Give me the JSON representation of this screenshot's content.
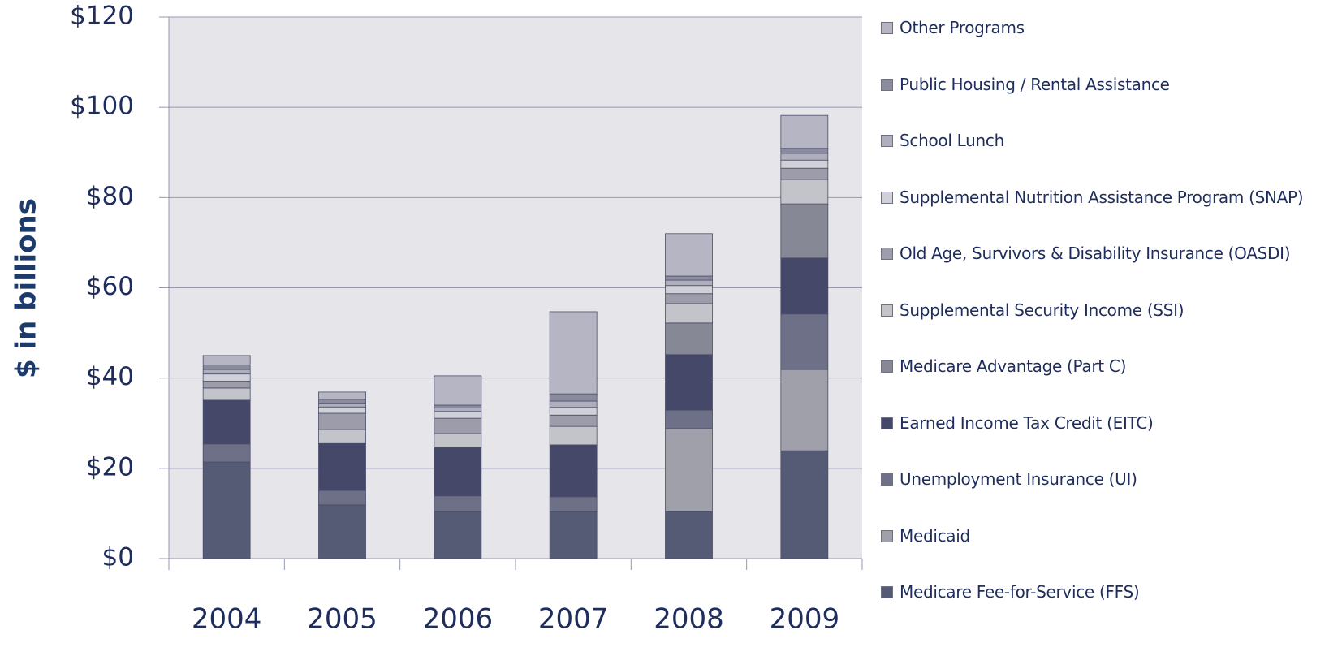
{
  "chart_data": {
    "type": "stacked_bar",
    "ylabel": "$ in billions",
    "categories": [
      "2004",
      "2005",
      "2006",
      "2007",
      "2008",
      "2009"
    ],
    "ylim": [
      0,
      120
    ],
    "yticks": [
      {
        "value": 0,
        "label": "$0"
      },
      {
        "value": 20,
        "label": "$20"
      },
      {
        "value": 40,
        "label": "$40"
      },
      {
        "value": 60,
        "label": "$60"
      },
      {
        "value": 80,
        "label": "$80"
      },
      {
        "value": 100,
        "label": "$100"
      },
      {
        "value": 120,
        "label": "$120"
      }
    ],
    "grid": true,
    "series": [
      {
        "name": "Medicare Fee-for-Service (FFS)",
        "color": "#555a75",
        "values": [
          21.4,
          11.9,
          10.4,
          10.4,
          10.4,
          23.9
        ]
      },
      {
        "name": "Medicaid",
        "color": "#a0a0ab",
        "values": [
          0,
          0,
          0,
          0,
          18.4,
          18.0
        ]
      },
      {
        "name": "Unemployment Insurance (UI)",
        "color": "#6e7088",
        "values": [
          4.0,
          3.2,
          3.5,
          3.3,
          4.1,
          12.3
        ]
      },
      {
        "name": "Earned Income Tax Credit (EITC)",
        "color": "#454868",
        "values": [
          9.7,
          10.4,
          10.7,
          11.5,
          12.3,
          12.4
        ]
      },
      {
        "name": "Medicare Advantage (Part C)",
        "color": "#868896",
        "values": [
          0,
          0,
          0,
          0,
          7.0,
          12.0
        ]
      },
      {
        "name": "Supplemental Security Income (SSI)",
        "color": "#c3c3ca",
        "values": [
          2.7,
          3.1,
          3.1,
          4.1,
          4.3,
          5.4
        ]
      },
      {
        "name": "Old Age, Survivors & Disability Insurance (OASDI)",
        "color": "#9c9cab",
        "values": [
          1.5,
          3.6,
          3.4,
          2.5,
          2.2,
          2.5
        ]
      },
      {
        "name": "Supplemental Nutrition Assistance Program (SNAP)",
        "color": "#cfd0d8",
        "values": [
          1.6,
          1.4,
          1.5,
          1.7,
          1.8,
          1.8
        ]
      },
      {
        "name": "School Lunch",
        "color": "#aeaebd",
        "values": [
          1.0,
          0.8,
          0.8,
          1.4,
          1.2,
          1.5
        ]
      },
      {
        "name": "Public Housing / Rental Assistance",
        "color": "#8a8c9e",
        "values": [
          1.0,
          0.9,
          0.6,
          1.6,
          0.9,
          1.1
        ]
      },
      {
        "name": "Other Programs",
        "color": "#b5b5c4",
        "values": [
          2.1,
          1.6,
          6.5,
          18.2,
          9.4,
          7.3
        ]
      }
    ]
  }
}
